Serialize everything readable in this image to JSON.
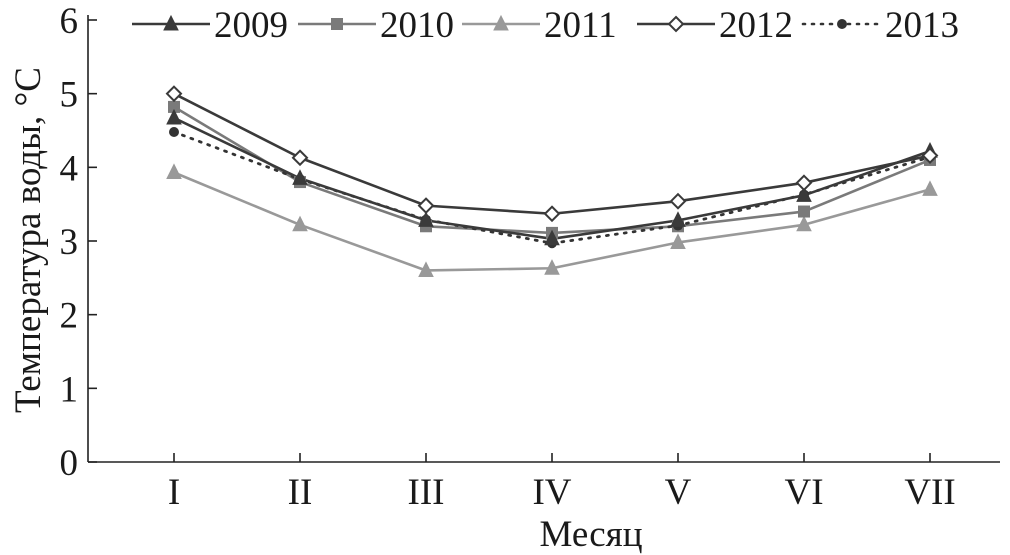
{
  "chart_data": {
    "type": "line",
    "title": "",
    "xlabel": "Месяц",
    "ylabel": "Температура воды, °C",
    "categories": [
      "I",
      "II",
      "III",
      "IV",
      "V",
      "VI",
      "VII"
    ],
    "ylim": [
      0,
      6
    ],
    "yticks": [
      "0",
      "1",
      "2",
      "3",
      "4",
      "5",
      "6"
    ],
    "grid": false,
    "legend_position": "top",
    "series": [
      {
        "name": "2009",
        "values": [
          4.67,
          3.85,
          3.28,
          3.03,
          3.28,
          3.62,
          4.22
        ],
        "color": "#3a3a3a",
        "marker": "triangle",
        "line": "solid"
      },
      {
        "name": "2010",
        "values": [
          4.82,
          3.8,
          3.2,
          3.11,
          3.2,
          3.4,
          4.1
        ],
        "color": "#7a7a7a",
        "marker": "square",
        "line": "solid"
      },
      {
        "name": "2011",
        "values": [
          3.93,
          3.22,
          2.6,
          2.63,
          2.98,
          3.22,
          3.7
        ],
        "color": "#999999",
        "marker": "triangle",
        "line": "solid"
      },
      {
        "name": "2012",
        "values": [
          5.0,
          4.13,
          3.48,
          3.37,
          3.54,
          3.79,
          4.16
        ],
        "color": "#3a3a3a",
        "marker": "diamond-open",
        "line": "solid"
      },
      {
        "name": "2013",
        "values": [
          4.48,
          3.84,
          3.29,
          2.97,
          3.21,
          3.63,
          4.14
        ],
        "color": "#333333",
        "marker": "circle",
        "line": "dotted"
      }
    ]
  }
}
